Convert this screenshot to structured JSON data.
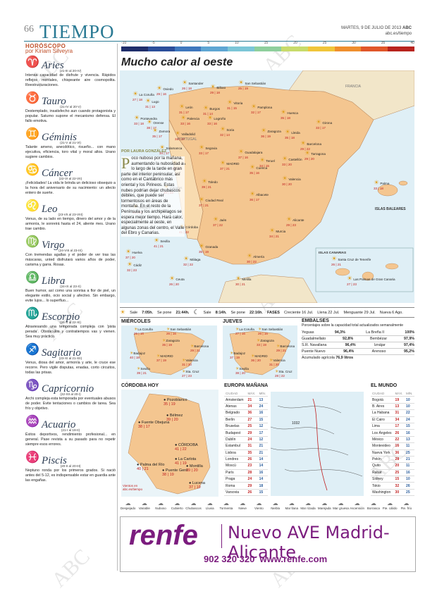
{
  "header": {
    "page": "66",
    "title": "TIEMPO",
    "date": "MARTES, 9 DE JULIO DE 2013",
    "brand": "ABC",
    "url": "abc.es/tiempo"
  },
  "scale": {
    "labels": [
      "-10",
      "-5",
      "0",
      "5",
      "10",
      "15",
      "20",
      "25",
      "30",
      "35",
      "40"
    ],
    "colors": [
      "#1f2e6b",
      "#2b4e9a",
      "#3f78be",
      "#5ea6d3",
      "#7cc6d7",
      "#8fcf9d",
      "#c8db6b",
      "#f0c53b",
      "#ef8f2e",
      "#e0572a",
      "#b8241e"
    ]
  },
  "horoscope": {
    "heading": "HORÓSCOPO",
    "author": "por Kiriam Silveyra",
    "signs": [
      {
        "name": "Aries",
        "glyph": "♈",
        "dates": "(21-III al 20-IV)",
        "text": "Intensa capacidad de disfrute y vivencia. Rápidos reflejos mentales, chispeante aire cosmopolita. Reestructuraciones."
      },
      {
        "name": "Tauro",
        "glyph": "♉",
        "dates": "(21-IV al 20-V)",
        "text": "Destemplado, insatisfecho aun cuando protagonista y popular. Saturno supone el mecanismo defensa. El fallo emotiva."
      },
      {
        "name": "Géminis",
        "glyph": "♊",
        "dates": "(21-V al 21-VI)",
        "text": "Talante ameno, anecdótico, risueño... con mano ejecutiva, eficiencia, toro vital y moral altos. Urano sugiere cambios."
      },
      {
        "name": "Cáncer",
        "glyph": "♋",
        "dates": "(22-VI al 22-VII)",
        "text": "¡Felicidades! La vida le brinda un delicioso obsequio a la hora del aniversario de su nacimiento: un afecto entero de suerte."
      },
      {
        "name": "Leo",
        "glyph": "♌",
        "dates": "(23-VII al 23-VIII)",
        "text": "Venus, de su lado en tiempo, dinero del amor y de la armonía, le sonreirá hasta el 24, aliente mes. Urano trae cambio."
      },
      {
        "name": "Virgo",
        "glyph": "♍",
        "dates": "(24-VIII al 23-IX)",
        "text": "Con tremendas agallas y el poder de ver tras las máscaras, unted disfrutará varios años de poder, carisma y garra. Rosas."
      },
      {
        "name": "Libra",
        "glyph": "♎",
        "dates": "(24-IX al 23-X)",
        "text": "Buen humor, así como una sonrisa a flor de piel, un elegante estilo, ocio social y afectivo. Sin embargo, evite lujos... lo superfluo..."
      },
      {
        "name": "Escorpio",
        "glyph": "♏",
        "dates": "(24-X al 22-XI)",
        "text": "Atraviesando una temporada compleja con 'pista perada'. Obstáculos y contratiempos vas y vienen. Sea muy práctico."
      },
      {
        "name": "Sagitario",
        "glyph": "♐",
        "dates": "(23-XI al 21-XII)",
        "text": "Venus, diosa del amor, armonía y arte, le cruce ese recorre. Pero vigile disputas, enadas, corto circuitos, todas las prisas."
      },
      {
        "name": "Capricornio",
        "glyph": "♑",
        "dates": "(22-XII al 20-I)",
        "text": "Archi compleja esta temporada por eventuales abusos de poder. Evite tentaciones o cambios de tarea. Sea frío y objetivo."
      },
      {
        "name": "Acuario",
        "glyph": "♒",
        "dates": "(21-I al 19-II)",
        "text": "Éxitos deportivos, rendimiento profesional... en general. Pase revista a su pasado para no repetir siempre esos errores."
      },
      {
        "name": "Piscis",
        "glyph": "♓",
        "dates": "(20-II al 20-III)",
        "text": "Neptuno ronda por los primeros grados. Si nació antes del 5-12, es indispensable estar en guardia ante las engañas."
      }
    ]
  },
  "main": {
    "title": "Mucho calor al oeste",
    "byline": "POR LAURA GONZÁLEZ",
    "dropcap": "P",
    "article": "oco nuboso por la mañana, aumentando la nubosidad a lo largo de la tarde en gran parte del interior peninsular, así como en el Cantábrico más oriental y los Pirineos. Estas nubes podrían dejar chubascos débiles, que puede ser tormentosos en áreas de montaña. En el resto de la Península y los archipiélagos se espera mejor tiempo. Hará calor, especialmente al oeste, en algunas zonas del centro, el Valle del Ebro y Canarias.",
    "region_labels": [
      "FRANCIA",
      "PORTUGAL",
      "ISLAS BALEARES",
      "ISLAS CANARIAS"
    ],
    "cities": [
      {
        "n": "Oviedo",
        "t": "29 | 16"
      },
      {
        "n": "Santander",
        "t": "26 | 18"
      },
      {
        "n": "Bilbao",
        "t": "29 | 18"
      },
      {
        "n": "San Sebastián",
        "t": "25 | 19"
      },
      {
        "n": "La Coruña",
        "t": "27 | 18"
      },
      {
        "n": "Lugo",
        "t": "31 | 13"
      },
      {
        "n": "León",
        "t": "31 | 17"
      },
      {
        "n": "Burgos",
        "t": "31 | 14"
      },
      {
        "n": "Vitoria",
        "t": "31 | 15"
      },
      {
        "n": "Pamplona",
        "t": "32 | 17"
      },
      {
        "n": "Huesca",
        "t": "35 | 18"
      },
      {
        "n": "Girona",
        "t": "33 | 17"
      },
      {
        "n": "Pontevedra",
        "t": "33 | 18"
      },
      {
        "n": "Orense",
        "t": "38 | 17"
      },
      {
        "n": "Palencia",
        "t": "33 | 16"
      },
      {
        "n": "Logroño",
        "t": "33 | 16"
      },
      {
        "n": "Zaragoza",
        "t": "36 | 19"
      },
      {
        "n": "Lleida",
        "t": "35 | 18"
      },
      {
        "n": "Barcelona",
        "t": "29 | 22"
      },
      {
        "n": "Zamora",
        "t": "35 | 17"
      },
      {
        "n": "Valladolid",
        "t": "34 | 17"
      },
      {
        "n": "Soria",
        "t": "32 | 14"
      },
      {
        "n": "Tarragona",
        "t": "29 | 20"
      },
      {
        "n": "Salamanca",
        "t": "34 | 17"
      },
      {
        "n": "Segovia",
        "t": "33 | 17"
      },
      {
        "n": "Guadalajara",
        "t": "37 | 16"
      },
      {
        "n": "Teruel",
        "t": "34 | 15"
      },
      {
        "n": "Castellón",
        "t": "33 | 20"
      },
      {
        "n": "Ávila",
        "t": "33 | 16"
      },
      {
        "n": "MADRID",
        "t": "37 | 21"
      },
      {
        "n": "Cuenca",
        "t": "35 | 16"
      },
      {
        "n": "Palma",
        "t": "33 | 18"
      },
      {
        "n": "Cáceres",
        "t": "40 | 23"
      },
      {
        "n": "Toledo",
        "t": "39 | 21"
      },
      {
        "n": "Valencia",
        "t": "30 | 20"
      },
      {
        "n": "Badajoz",
        "t": "41 | 20"
      },
      {
        "n": "Ciudad Real",
        "t": "37 | 21"
      },
      {
        "n": "Albacete",
        "t": "36 | 17"
      },
      {
        "n": "Alicante",
        "t": "29 | 23"
      },
      {
        "n": "Córdoba",
        "t": "41 | 22"
      },
      {
        "n": "Jaén",
        "t": "37 | 22"
      },
      {
        "n": "Murcia",
        "t": "34 | 21"
      },
      {
        "n": "Sevilla",
        "t": "41 | 21"
      },
      {
        "n": "Huelva",
        "t": "37 | 20"
      },
      {
        "n": "Granada",
        "t": "35 | 19"
      },
      {
        "n": "Almería",
        "t": "30 | 22"
      },
      {
        "n": "Cádiz",
        "t": "32 | 23"
      },
      {
        "n": "Málaga",
        "t": "32 | 22"
      },
      {
        "n": "Ceuta",
        "t": "26 | 20"
      },
      {
        "n": "Melilla",
        "t": "30 | 21"
      },
      {
        "n": "Santa Cruz de Tenerife",
        "t": "26 | 21"
      },
      {
        "n": "Las Palmas de Gran Canaria",
        "t": "27 | 23"
      }
    ]
  },
  "sunmoon": {
    "sun_rise_label": "Sale",
    "sun_rise": "7:05h.",
    "sun_set_label": "Se pone",
    "sun_set": "21:44h.",
    "moon_rise_label": "Sale",
    "moon_rise": "8:14h.",
    "moon_set_label": "Se pone",
    "moon_set": "22:16h.",
    "phases_label": "FASES",
    "phases": [
      "Creciente 16 Jul.",
      "Llena 22 Jul.",
      "Menguante 29 Jul.",
      "Nueva 6 Ago."
    ]
  },
  "forecast": {
    "miercoles": "MIÉRCOLES",
    "jueves": "JUEVES",
    "wed_cities": [
      {
        "n": "La Coruña",
        "t": "26 | 16"
      },
      {
        "n": "San Sebastián",
        "t": "26 | 16"
      },
      {
        "n": "Zaragoza",
        "t": "35 | 19"
      },
      {
        "n": "Barcelona",
        "t": "29 | 21"
      },
      {
        "n": "Badajoz",
        "t": "40 | 18"
      },
      {
        "n": "MADRID",
        "t": "37 | 19"
      },
      {
        "n": "Valencia",
        "t": "31 | 20"
      },
      {
        "n": "Sevilla",
        "t": "39 | 21"
      },
      {
        "n": "Sta. Cruz",
        "t": "27 | 23"
      }
    ],
    "thu_cities": [
      {
        "n": "La Coruña",
        "t": "27 | 16"
      },
      {
        "n": "San Sebastián",
        "t": "26 | 16"
      },
      {
        "n": "Zaragoza",
        "t": "33 | 19"
      },
      {
        "n": "Barcelona",
        "t": "29 | 21"
      },
      {
        "n": "Badajoz",
        "t": "37 | 19"
      },
      {
        "n": "MADRID",
        "t": "36 | 20"
      },
      {
        "n": "Valencia",
        "t": "31 | 20"
      },
      {
        "n": "Sevilla",
        "t": "38 | 20"
      },
      {
        "n": "Sta. Cruz",
        "t": "28 | 22"
      }
    ]
  },
  "embalses": {
    "title": "EMBALSES",
    "subtitle": "Porcentajes sobre la capacidad total actualizados semanalmente",
    "rows": [
      [
        "Yeguas",
        "94,3%",
        "La Breña II",
        "100%"
      ],
      [
        "Guadalmellato",
        "92,8%",
        "Bembézar",
        "97,9%"
      ],
      [
        "S.R. Navallana",
        "96,4%",
        "Iznájar",
        "97,4%"
      ],
      [
        "Puente Nuevo",
        "96,4%",
        "Arenoso",
        "95,2%"
      ]
    ],
    "total_label": "Acumulado agrícola",
    "total": "76,9 litros"
  },
  "cordoba": {
    "title": "CÓRDOBA HOY",
    "cities": [
      "Pozoblanco",
      "Bélmez",
      "Fuente Obejuna",
      "CÓRDOBA",
      "La Carlota",
      "Palma del Río",
      "Puente Genil",
      "Montilla",
      "Lucena"
    ],
    "temps": [
      "35 | 19",
      "39 | 20",
      "38 | 17",
      "41 | 22",
      "41 | 19",
      "40 | 21",
      "38 | 19",
      "39 | 20",
      "37 | 19"
    ],
    "footer": "Vientos en\nabc.es/tiempo"
  },
  "europa": {
    "title": "EUROPA MAÑANA",
    "cols": [
      "CIUDAD",
      "MÁX.",
      "MÍN."
    ],
    "front": "1032",
    "rows": [
      [
        "Amsterdam",
        "21",
        "13"
      ],
      [
        "Atenas",
        "34",
        "24"
      ],
      [
        "Belgrado",
        "36",
        "16"
      ],
      [
        "Berlín",
        "27",
        "15"
      ],
      [
        "Bruselas",
        "25",
        "12"
      ],
      [
        "Budapest",
        "29",
        "17"
      ],
      [
        "Dublín",
        "24",
        "12"
      ],
      [
        "Estambul",
        "31",
        "21"
      ],
      [
        "Lisboa",
        "35",
        "21"
      ],
      [
        "Londres",
        "26",
        "14"
      ],
      [
        "Moscú",
        "23",
        "14"
      ],
      [
        "París",
        "28",
        "16"
      ],
      [
        "Praga",
        "24",
        "14"
      ],
      [
        "Roma",
        "29",
        "18"
      ],
      [
        "Varsovia",
        "26",
        "15"
      ]
    ]
  },
  "mundo": {
    "title": "EL MUNDO",
    "cols": [
      "CIUDAD",
      "MÁX.",
      "MÍN."
    ],
    "rows": [
      [
        "Bogotá",
        "19",
        "10"
      ],
      [
        "B. Aires",
        "13",
        "10"
      ],
      [
        "La Habana",
        "31",
        "22"
      ],
      [
        "El Cairo",
        "34",
        "24"
      ],
      [
        "Lima",
        "17",
        "15"
      ],
      [
        "Los Ángeles",
        "26",
        "16"
      ],
      [
        "México",
        "22",
        "13"
      ],
      [
        "Montevideo",
        "16",
        "11"
      ],
      [
        "Nueva York",
        "36",
        "25"
      ],
      [
        "Pekín",
        "28",
        "21"
      ],
      [
        "Quito",
        "20",
        "11"
      ],
      [
        "Rabat",
        "25",
        "16"
      ],
      [
        "Sídney",
        "15",
        "10"
      ],
      [
        "Tokio",
        "32",
        "26"
      ],
      [
        "Washington",
        "30",
        "25"
      ]
    ]
  },
  "legend": [
    "Despejado",
    "Variable",
    "Nuboso",
    "Cubierto",
    "Chubascos",
    "Lluvia",
    "Tormenta",
    "Nieve",
    "Viento",
    "Niebla",
    "Mar llana",
    "Mar rizada",
    "Marejada",
    "Mar gruesa",
    "Ascensión",
    "Borrasca",
    "Fte. cálido",
    "Fte. frío"
  ],
  "ad": {
    "brand": "renfe",
    "headline": "Nuevo AVE Madrid-Alicante",
    "phone": "902 320 320",
    "web": "www.renfe.com"
  },
  "watermark": "ABC"
}
